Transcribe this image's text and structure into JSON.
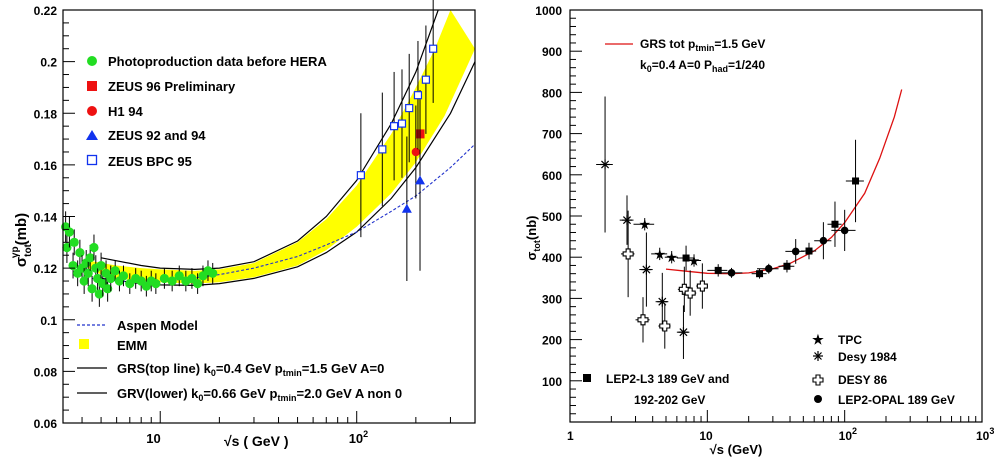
{
  "chart_data": [
    {
      "type": "scatter",
      "xscale": "log",
      "xlim": [
        3.2,
        400
      ],
      "ylim": [
        0.06,
        0.22
      ],
      "ytick_labels": [
        "0.06",
        "0.08",
        "0.1",
        "0.12",
        "0.14",
        "0.16",
        "0.18",
        "0.2",
        "0.22"
      ],
      "yticks": [
        0.06,
        0.08,
        0.1,
        0.12,
        0.14,
        0.16,
        0.18,
        0.2,
        0.22
      ],
      "xtick_labels": [
        {
          "x": 10,
          "base": "10",
          "exp": ""
        },
        {
          "x": 100,
          "base": "10",
          "exp": "2"
        }
      ],
      "xlabel": "√s ( GeV )",
      "ylabel": {
        "base": "σ",
        "sup": "γp",
        "sub": "tot",
        "unit": "(mb)"
      },
      "legend_points": [
        {
          "label": "Photoproduction data before HERA",
          "marker": "circle",
          "color": "#22dd22"
        },
        {
          "label": "ZEUS 96 Preliminary",
          "marker": "square",
          "color": "#ee1111"
        },
        {
          "label": "H1 94",
          "marker": "circle",
          "color": "#ee1111"
        },
        {
          "label": "ZEUS 92 and 94",
          "marker": "triangle",
          "color": "#1133ee"
        },
        {
          "label": "ZEUS BPC 95",
          "marker": "open-square",
          "color": "#1133ee"
        }
      ],
      "legend_lines": [
        {
          "label": "Aspen Model",
          "style": "dashed",
          "color": "#2233cc"
        },
        {
          "label": "EMM",
          "style": "band",
          "color": "#ffff00"
        },
        {
          "label_parts": [
            "GRS(top line) k",
            "0",
            "=0.4 GeV  p",
            "tmin",
            "=1.5 GeV A=0"
          ],
          "style": "line",
          "color": "#000000"
        },
        {
          "label_parts": [
            "GRV(lower) k",
            "0",
            "=0.66 GeV p",
            "tmin",
            "=2.0 GeV A non 0"
          ],
          "style": "line",
          "color": "#000000"
        }
      ],
      "series": [
        {
          "marker": "circle",
          "color": "#22dd22",
          "points": [
            {
              "x": 3.3,
              "y": 0.136,
              "err": 0.006
            },
            {
              "x": 3.35,
              "y": 0.128,
              "err": 0.006
            },
            {
              "x": 3.45,
              "y": 0.134,
              "err": 0.006
            },
            {
              "x": 3.6,
              "y": 0.121,
              "err": 0.005
            },
            {
              "x": 3.65,
              "y": 0.13,
              "err": 0.005
            },
            {
              "x": 3.8,
              "y": 0.118,
              "err": 0.005
            },
            {
              "x": 3.9,
              "y": 0.126,
              "err": 0.005
            },
            {
              "x": 4.0,
              "y": 0.12,
              "err": 0.005
            },
            {
              "x": 4.1,
              "y": 0.115,
              "err": 0.005
            },
            {
              "x": 4.2,
              "y": 0.122,
              "err": 0.005
            },
            {
              "x": 4.3,
              "y": 0.118,
              "err": 0.005
            },
            {
              "x": 4.4,
              "y": 0.124,
              "err": 0.005
            },
            {
              "x": 4.5,
              "y": 0.112,
              "err": 0.005
            },
            {
              "x": 4.6,
              "y": 0.128,
              "err": 0.005
            },
            {
              "x": 4.7,
              "y": 0.12,
              "err": 0.005
            },
            {
              "x": 4.8,
              "y": 0.116,
              "err": 0.005
            },
            {
              "x": 4.9,
              "y": 0.11,
              "err": 0.005
            },
            {
              "x": 5.0,
              "y": 0.121,
              "err": 0.005
            },
            {
              "x": 5.1,
              "y": 0.114,
              "err": 0.005
            },
            {
              "x": 5.3,
              "y": 0.118,
              "err": 0.005
            },
            {
              "x": 5.4,
              "y": 0.112,
              "err": 0.005
            },
            {
              "x": 5.6,
              "y": 0.116,
              "err": 0.005
            },
            {
              "x": 5.9,
              "y": 0.119,
              "err": 0.004
            },
            {
              "x": 6.2,
              "y": 0.115,
              "err": 0.004
            },
            {
              "x": 6.5,
              "y": 0.117,
              "err": 0.004
            },
            {
              "x": 7.0,
              "y": 0.114,
              "err": 0.004
            },
            {
              "x": 7.5,
              "y": 0.116,
              "err": 0.004
            },
            {
              "x": 8.0,
              "y": 0.115,
              "err": 0.004
            },
            {
              "x": 8.5,
              "y": 0.113,
              "err": 0.004
            },
            {
              "x": 9.0,
              "y": 0.115,
              "err": 0.004
            },
            {
              "x": 9.5,
              "y": 0.114,
              "err": 0.004
            },
            {
              "x": 10.5,
              "y": 0.116,
              "err": 0.004
            },
            {
              "x": 11.5,
              "y": 0.115,
              "err": 0.004
            },
            {
              "x": 12.5,
              "y": 0.117,
              "err": 0.004
            },
            {
              "x": 13.5,
              "y": 0.115,
              "err": 0.004
            },
            {
              "x": 14.5,
              "y": 0.116,
              "err": 0.004
            },
            {
              "x": 15.5,
              "y": 0.114,
              "err": 0.004
            },
            {
              "x": 16.5,
              "y": 0.117,
              "err": 0.004
            },
            {
              "x": 17.5,
              "y": 0.119,
              "err": 0.004
            },
            {
              "x": 18.5,
              "y": 0.118,
              "err": 0.004
            }
          ]
        },
        {
          "marker": "square",
          "color": "#ee1111",
          "points": [
            {
              "x": 210,
              "y": 0.172,
              "err": 0.015
            }
          ]
        },
        {
          "marker": "circle",
          "color": "#ee1111",
          "points": [
            {
              "x": 200,
              "y": 0.165,
              "err": 0.018
            }
          ]
        },
        {
          "marker": "triangle",
          "color": "#1133ee",
          "points": [
            {
              "x": 180,
              "y": 0.143,
              "err": 0.028
            },
            {
              "x": 210,
              "y": 0.154,
              "err": 0.035
            }
          ]
        },
        {
          "marker": "open-square",
          "color": "#1133ee",
          "points": [
            {
              "x": 105,
              "y": 0.156,
              "err": 0.024
            },
            {
              "x": 135,
              "y": 0.166,
              "err": 0.022
            },
            {
              "x": 155,
              "y": 0.175,
              "err": 0.021
            },
            {
              "x": 170,
              "y": 0.176,
              "err": 0.021
            },
            {
              "x": 185,
              "y": 0.182,
              "err": 0.021
            },
            {
              "x": 205,
              "y": 0.187,
              "err": 0.021
            },
            {
              "x": 225,
              "y": 0.193,
              "err": 0.021
            },
            {
              "x": 245,
              "y": 0.205,
              "err": 0.021
            }
          ]
        }
      ],
      "curves": {
        "band_lower": [
          [
            4.3,
            0.12
          ],
          [
            5,
            0.1175
          ],
          [
            6,
            0.116
          ],
          [
            8,
            0.115
          ],
          [
            10,
            0.1145
          ],
          [
            15,
            0.114
          ],
          [
            20,
            0.1145
          ],
          [
            30,
            0.1165
          ],
          [
            50,
            0.121
          ],
          [
            70,
            0.127
          ],
          [
            100,
            0.136
          ],
          [
            150,
            0.149
          ],
          [
            200,
            0.161
          ],
          [
            280,
            0.179
          ],
          [
            400,
            0.205
          ]
        ],
        "band_upper": [
          [
            4.3,
            0.123
          ],
          [
            5,
            0.122
          ],
          [
            6,
            0.121
          ],
          [
            8,
            0.12
          ],
          [
            10,
            0.1195
          ],
          [
            15,
            0.119
          ],
          [
            20,
            0.1195
          ],
          [
            30,
            0.122
          ],
          [
            50,
            0.13
          ],
          [
            70,
            0.139
          ],
          [
            100,
            0.152
          ],
          [
            150,
            0.172
          ],
          [
            200,
            0.19
          ],
          [
            250,
            0.205
          ],
          [
            300,
            0.22
          ]
        ],
        "aspen": [
          [
            4.5,
            0.116
          ],
          [
            6,
            0.115
          ],
          [
            8,
            0.1145
          ],
          [
            10,
            0.1148
          ],
          [
            15,
            0.1162
          ],
          [
            20,
            0.1175
          ],
          [
            30,
            0.12
          ],
          [
            50,
            0.1245
          ],
          [
            70,
            0.129
          ],
          [
            100,
            0.134
          ],
          [
            150,
            0.142
          ],
          [
            200,
            0.148
          ],
          [
            300,
            0.159
          ],
          [
            400,
            0.168
          ]
        ],
        "grs": [
          [
            5,
            0.124
          ],
          [
            8,
            0.121
          ],
          [
            10,
            0.12
          ],
          [
            15,
            0.1195
          ],
          [
            20,
            0.12
          ],
          [
            30,
            0.1225
          ],
          [
            50,
            0.1305
          ],
          [
            70,
            0.14
          ],
          [
            100,
            0.154
          ],
          [
            150,
            0.176
          ],
          [
            200,
            0.196
          ],
          [
            260,
            0.22
          ]
        ],
        "grv": [
          [
            5,
            0.116
          ],
          [
            8,
            0.114
          ],
          [
            10,
            0.1135
          ],
          [
            15,
            0.1133
          ],
          [
            20,
            0.114
          ],
          [
            30,
            0.116
          ],
          [
            50,
            0.1205
          ],
          [
            70,
            0.126
          ],
          [
            100,
            0.134
          ],
          [
            150,
            0.147
          ],
          [
            200,
            0.159
          ],
          [
            300,
            0.18
          ],
          [
            400,
            0.2
          ]
        ]
      }
    },
    {
      "type": "scatter",
      "xscale": "log",
      "xlim": [
        1,
        1000
      ],
      "ylim": [
        0,
        1000
      ],
      "yticks": [
        100,
        200,
        300,
        400,
        500,
        600,
        700,
        800,
        900,
        1000
      ],
      "ytick_labels": [
        "100",
        "200",
        "300",
        "400",
        "500",
        "600",
        "700",
        "800",
        "900",
        "1000"
      ],
      "xtick_labels": [
        {
          "x": 1,
          "base": "1",
          "exp": ""
        },
        {
          "x": 10,
          "base": "10",
          "exp": ""
        },
        {
          "x": 100,
          "base": "10",
          "exp": "2"
        },
        {
          "x": 1000,
          "base": "10",
          "exp": "3"
        }
      ],
      "xlabel": "√s (GeV)",
      "ylabel": {
        "base": "σ",
        "sub": "tot",
        "unit": "(nb)"
      },
      "legend_curve": {
        "line1_parts": [
          "GRS tot p",
          "tmin",
          "=1.5 GeV"
        ],
        "line2_parts": [
          "k",
          "0",
          "=0.4 A=0 P",
          "had",
          "=1/240"
        ],
        "color": "#dd1111"
      },
      "legend_points": [
        {
          "label": "TPC",
          "marker": "star"
        },
        {
          "label": "Desy 1984",
          "marker": "asterisk"
        },
        {
          "label": "DESY 86",
          "marker": "open-cross"
        },
        {
          "label": "LEP2-OPAL 189 GeV",
          "marker": "circle"
        }
      ],
      "legend_l3": {
        "line1": "LEP2-L3 189 GeV and",
        "line2": "192-202 GeV",
        "marker": "square"
      },
      "series": [
        {
          "name": "TPC",
          "marker": "star",
          "points": [
            {
              "x": 3.5,
              "y": 480,
              "ex": 0.6,
              "err": 15
            },
            {
              "x": 4.5,
              "y": 408,
              "ex": 0.6,
              "err": 15
            },
            {
              "x": 5.5,
              "y": 400,
              "ex": 0.6,
              "err": 15
            },
            {
              "x": 8,
              "y": 392,
              "ex": 1.0,
              "err": 15
            }
          ]
        },
        {
          "name": "Desy 1984",
          "marker": "asterisk",
          "points": [
            {
              "x": 1.8,
              "y": 625,
              "ex": 0.25,
              "err": 165
            },
            {
              "x": 2.6,
              "y": 490,
              "ex": 0.3,
              "err": 60
            },
            {
              "x": 3.6,
              "y": 370,
              "ex": 0.4,
              "err": 90
            },
            {
              "x": 4.7,
              "y": 292,
              "ex": 0.5,
              "err": 70
            },
            {
              "x": 6.7,
              "y": 218,
              "ex": 0.7,
              "err": 65
            }
          ]
        },
        {
          "name": "DESY 86",
          "marker": "open-cross",
          "points": [
            {
              "x": 2.65,
              "y": 408,
              "ex": 0.3,
              "err": 105
            },
            {
              "x": 3.4,
              "y": 248,
              "ex": 0.4,
              "err": 55
            },
            {
              "x": 4.9,
              "y": 233,
              "ex": 0.5,
              "err": 55
            },
            {
              "x": 6.8,
              "y": 322,
              "ex": 0.7,
              "err": 55
            },
            {
              "x": 7.5,
              "y": 313,
              "ex": 0.8,
              "err": 55
            },
            {
              "x": 9.2,
              "y": 330,
              "ex": 0.9,
              "err": 55
            }
          ]
        },
        {
          "name": "LEP2-OPAL 189 GeV",
          "marker": "circle",
          "points": [
            {
              "x": 15,
              "y": 362,
              "ex": 3,
              "err": 12
            },
            {
              "x": 28,
              "y": 372,
              "ex": 5,
              "err": 12
            },
            {
              "x": 44,
              "y": 414,
              "ex": 7,
              "err": 30
            },
            {
              "x": 70,
              "y": 440,
              "ex": 10,
              "err": 45
            },
            {
              "x": 100,
              "y": 465,
              "ex": 20,
              "err": 50
            }
          ]
        },
        {
          "name": "LEP2-L3",
          "marker": "square",
          "points": [
            {
              "x": 7,
              "y": 398,
              "ex": 1.0,
              "err": 30
            },
            {
              "x": 12,
              "y": 368,
              "ex": 2,
              "err": 15
            },
            {
              "x": 24,
              "y": 360,
              "ex": 3,
              "err": 12
            },
            {
              "x": 38,
              "y": 378,
              "ex": 5,
              "err": 15
            },
            {
              "x": 55,
              "y": 415,
              "ex": 7,
              "err": 20
            },
            {
              "x": 85,
              "y": 480,
              "ex": 10,
              "err": 55
            },
            {
              "x": 120,
              "y": 585,
              "ex": 18,
              "err": 100
            }
          ]
        }
      ],
      "curve": [
        [
          5,
          371
        ],
        [
          7,
          366
        ],
        [
          10,
          361
        ],
        [
          15,
          360
        ],
        [
          20,
          362
        ],
        [
          30,
          372
        ],
        [
          40,
          385
        ],
        [
          60,
          415
        ],
        [
          80,
          448
        ],
        [
          100,
          484
        ],
        [
          140,
          555
        ],
        [
          180,
          640
        ],
        [
          230,
          740
        ],
        [
          260,
          807
        ]
      ]
    }
  ]
}
